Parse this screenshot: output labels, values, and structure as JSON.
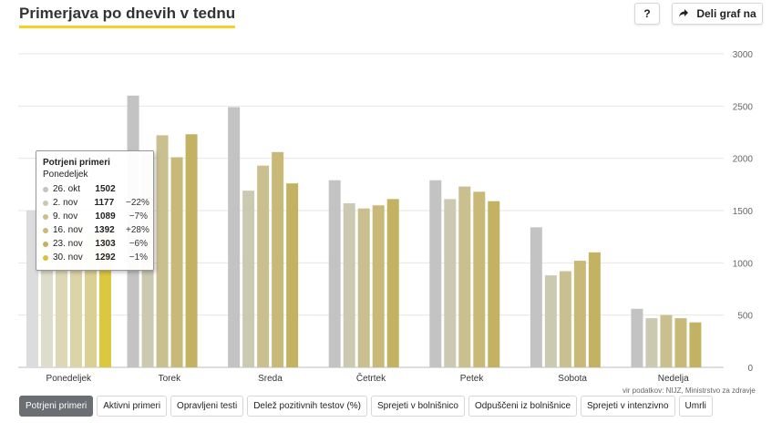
{
  "header": {
    "title": "Primerjava po dnevih v tednu",
    "help_label": "?",
    "share_label": "Deli graf na"
  },
  "source": "vir podatkov: NIJZ, Ministrstvo za zdravje",
  "tabs": [
    {
      "label": "Potrjeni primeri",
      "active": true
    },
    {
      "label": "Aktivni primeri",
      "active": false
    },
    {
      "label": "Opravljeni testi",
      "active": false
    },
    {
      "label": "Delež pozitivnih testov (%)",
      "active": false
    },
    {
      "label": "Sprejeti v bolnišnico",
      "active": false
    },
    {
      "label": "Odpuščeni iz bolnišnice",
      "active": false
    },
    {
      "label": "Sprejeti v intenzivno",
      "active": false
    },
    {
      "label": "Umrli",
      "active": false
    }
  ],
  "tooltip": {
    "title": "Potrjeni primeri",
    "subtitle": "Ponedeljek",
    "rows": [
      {
        "date": "26. okt",
        "value": "1502",
        "change": ""
      },
      {
        "date": "2. nov",
        "value": "1177",
        "change": "−22%"
      },
      {
        "date": "9. nov",
        "value": "1089",
        "change": "−7%"
      },
      {
        "date": "16. nov",
        "value": "1392",
        "change": "+28%"
      },
      {
        "date": "23. nov",
        "value": "1303",
        "change": "−6%"
      },
      {
        "date": "30. nov",
        "value": "1292",
        "change": "−1%"
      }
    ]
  },
  "chart_data": {
    "type": "bar",
    "categories": [
      "Ponedeljek",
      "Torek",
      "Sreda",
      "Četrtek",
      "Petek",
      "Sobota",
      "Nedelja"
    ],
    "series": [
      {
        "name": "26. okt",
        "color": "#c3c3c3",
        "values": [
          1502,
          2600,
          2490,
          1790,
          1790,
          1340,
          560
        ]
      },
      {
        "name": "2. nov",
        "color": "#cbc9b1",
        "values": [
          1177,
          2040,
          1690,
          1570,
          1610,
          880,
          470
        ]
      },
      {
        "name": "9. nov",
        "color": "#c9bf8f",
        "values": [
          1089,
          2220,
          1930,
          1520,
          1730,
          920,
          500
        ]
      },
      {
        "name": "16. nov",
        "color": "#c8b979",
        "values": [
          1392,
          2010,
          2060,
          1550,
          1680,
          1020,
          470
        ]
      },
      {
        "name": "23. nov",
        "color": "#c3b261",
        "values": [
          1303,
          2230,
          1760,
          1610,
          1590,
          1100,
          430
        ]
      },
      {
        "name": "30. nov",
        "color": "#d6c440",
        "values": [
          1292,
          null,
          null,
          null,
          null,
          null,
          null
        ]
      }
    ],
    "ylim": [
      0,
      3000
    ],
    "yticks": [
      0,
      500,
      1000,
      1500,
      2000,
      2500,
      3000
    ],
    "grid": true,
    "legend": "tooltip"
  }
}
